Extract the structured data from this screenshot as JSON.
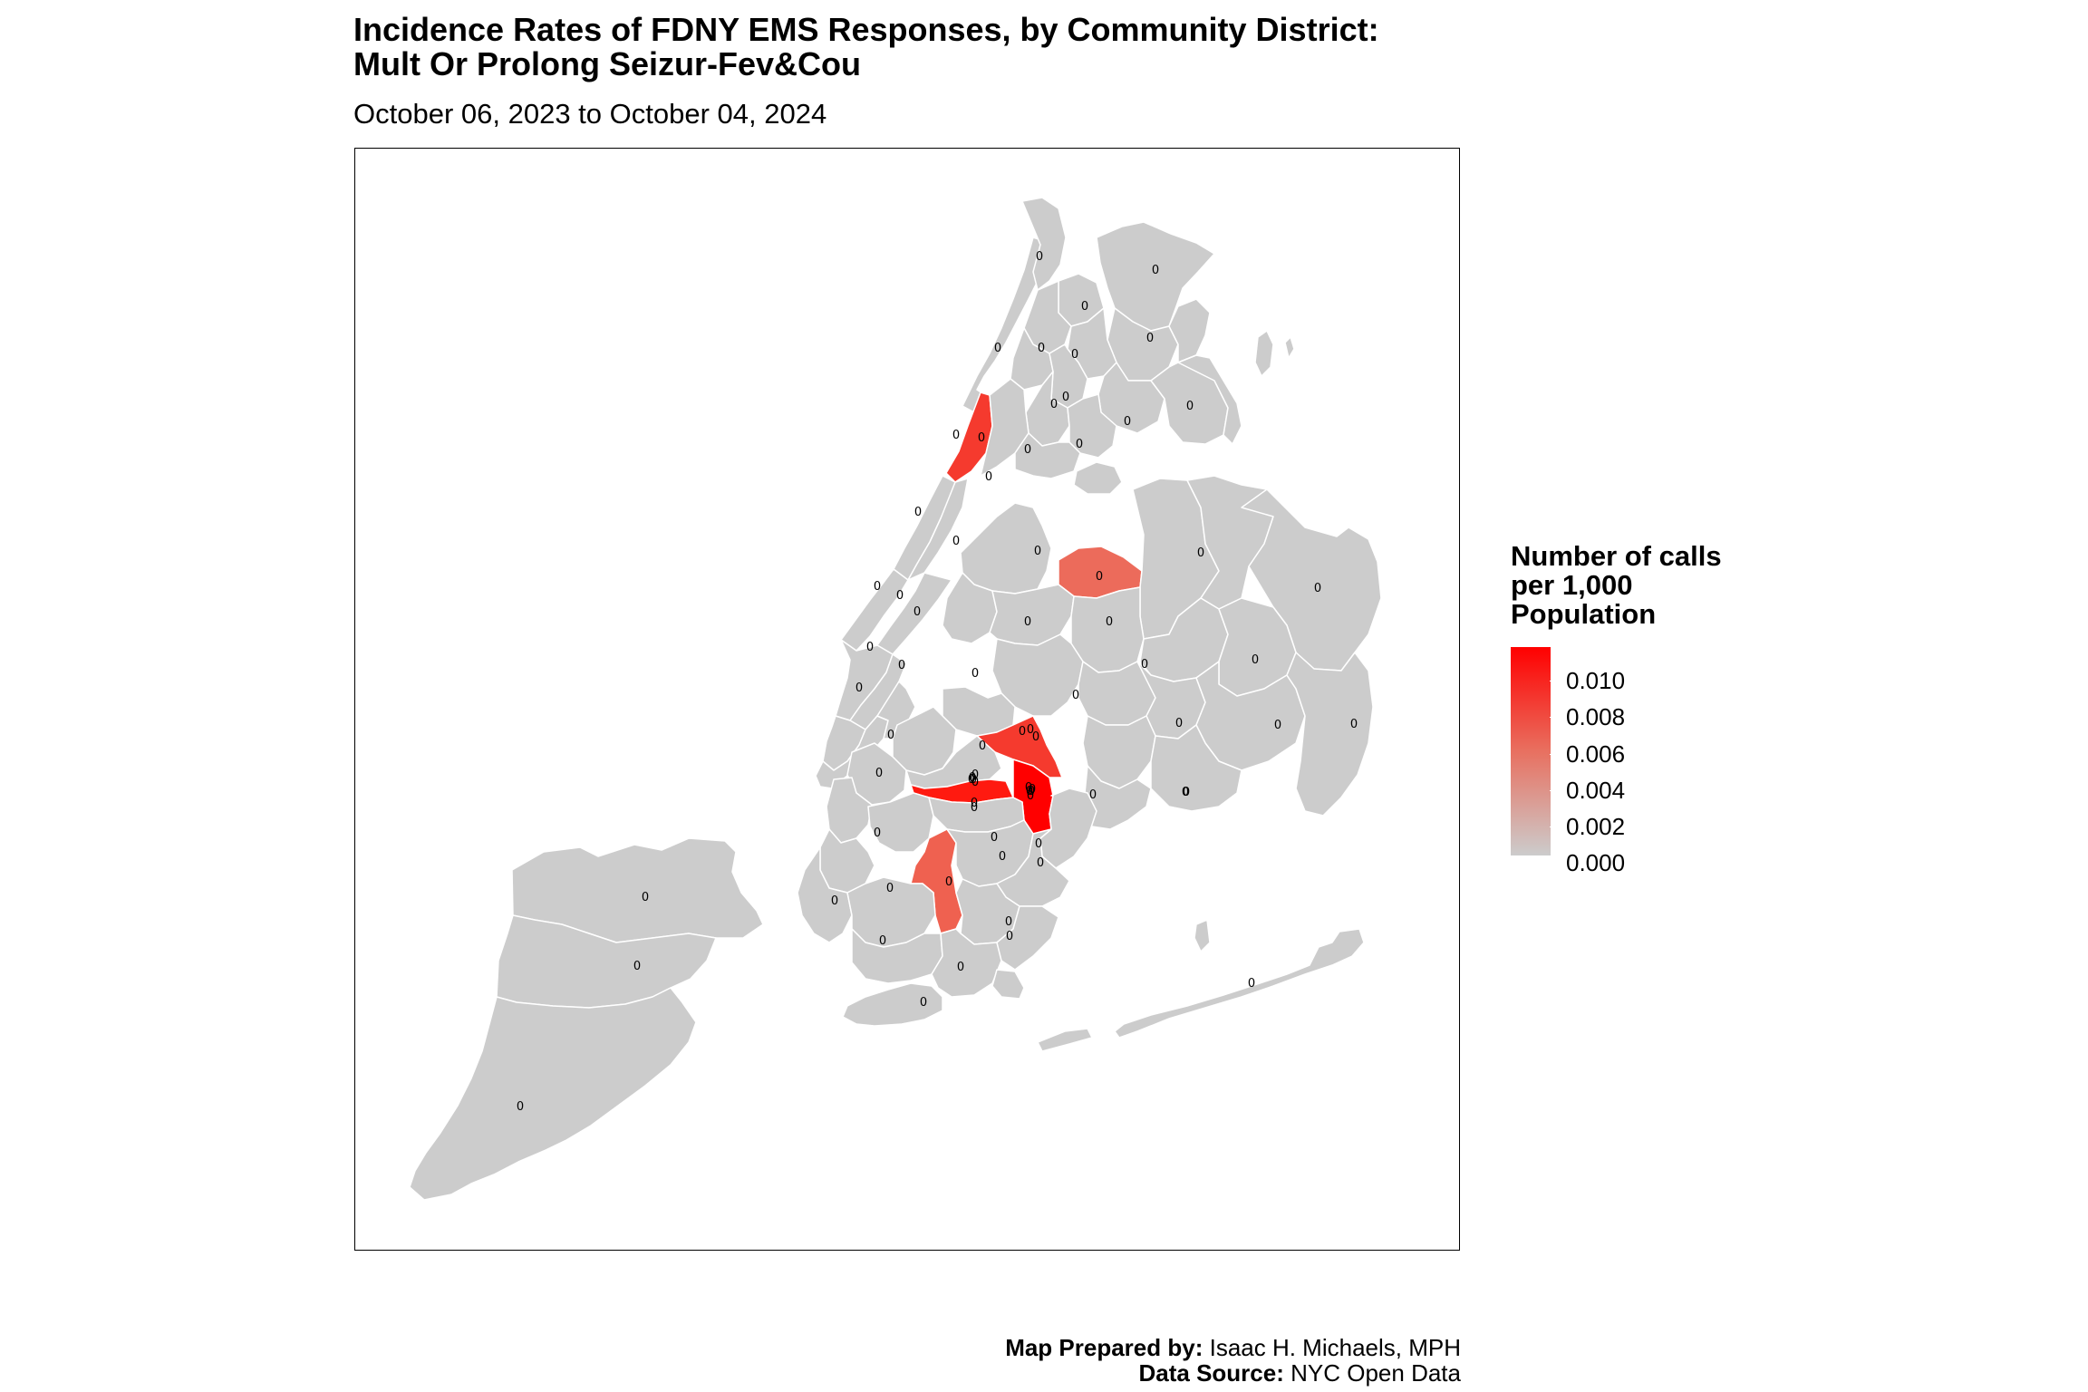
{
  "title_line1": "Incidence Rates of FDNY EMS Responses, by Community District:",
  "title_line2": "Mult Or Prolong Seizur-Fev&Cou",
  "subtitle": "October 06, 2023 to October 04, 2024",
  "legend": {
    "title_line1": "Number of calls",
    "title_line2": "per 1,000",
    "title_line3": "Population",
    "labels": [
      "0.010",
      "0.008",
      "0.006",
      "0.004",
      "0.002",
      "0.000"
    ],
    "color_low": "#cccccc",
    "color_high": "#ff0000"
  },
  "credits": {
    "prepared_label": "Map Prepared by:",
    "prepared_value": "Isaac H. Michaels, MPH",
    "source_label": "Data Source:",
    "source_value": "NYC Open Data"
  },
  "district_label": "0",
  "colors": {
    "base": "#cccccc",
    "border": "#ffffff",
    "highlight_1": "#ff0000",
    "highlight_2": "#f53a2e",
    "highlight_3": "#ef6150",
    "highlight_4": "#ec6b5b"
  }
}
